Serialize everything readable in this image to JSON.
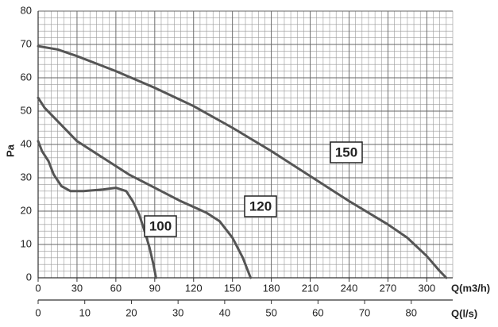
{
  "chart_data": {
    "type": "line",
    "ylabel": "Pa",
    "xlabel": "Q(m3/h)",
    "x2label": "Q(l/s)",
    "xlim": [
      0,
      320
    ],
    "xticks": [
      0,
      30,
      60,
      90,
      120,
      150,
      180,
      210,
      240,
      270,
      300
    ],
    "x2lim": [
      0,
      88.89
    ],
    "x2ticks": [
      0,
      10,
      20,
      30,
      40,
      50,
      60,
      70,
      80
    ],
    "ylim": [
      0,
      80
    ],
    "yticks": [
      0,
      10,
      20,
      30,
      40,
      50,
      60,
      70,
      80
    ],
    "grid": true,
    "series": [
      {
        "name": "100",
        "color": "#555555",
        "x": [
          0,
          3,
          8,
          12,
          18,
          25,
          35,
          50,
          60,
          68,
          73,
          78,
          83,
          86,
          89,
          91
        ],
        "values": [
          41,
          38,
          35,
          31,
          27.5,
          26,
          26,
          26.5,
          27,
          26,
          23,
          19,
          13,
          9,
          4,
          0
        ]
      },
      {
        "name": "120",
        "color": "#555555",
        "x": [
          0,
          5,
          15,
          30,
          50,
          70,
          90,
          110,
          130,
          140,
          150,
          158,
          164
        ],
        "values": [
          54,
          51,
          47,
          41,
          36,
          31,
          27,
          23,
          19.5,
          17,
          12,
          6,
          0
        ]
      },
      {
        "name": "150",
        "color": "#555555",
        "x": [
          0,
          15,
          30,
          60,
          90,
          120,
          150,
          180,
          210,
          240,
          270,
          285,
          300,
          310,
          315
        ],
        "values": [
          69.5,
          68.5,
          66.5,
          62,
          57,
          51.5,
          45,
          38,
          30.5,
          23,
          16,
          12,
          6.5,
          2,
          0
        ]
      }
    ]
  }
}
